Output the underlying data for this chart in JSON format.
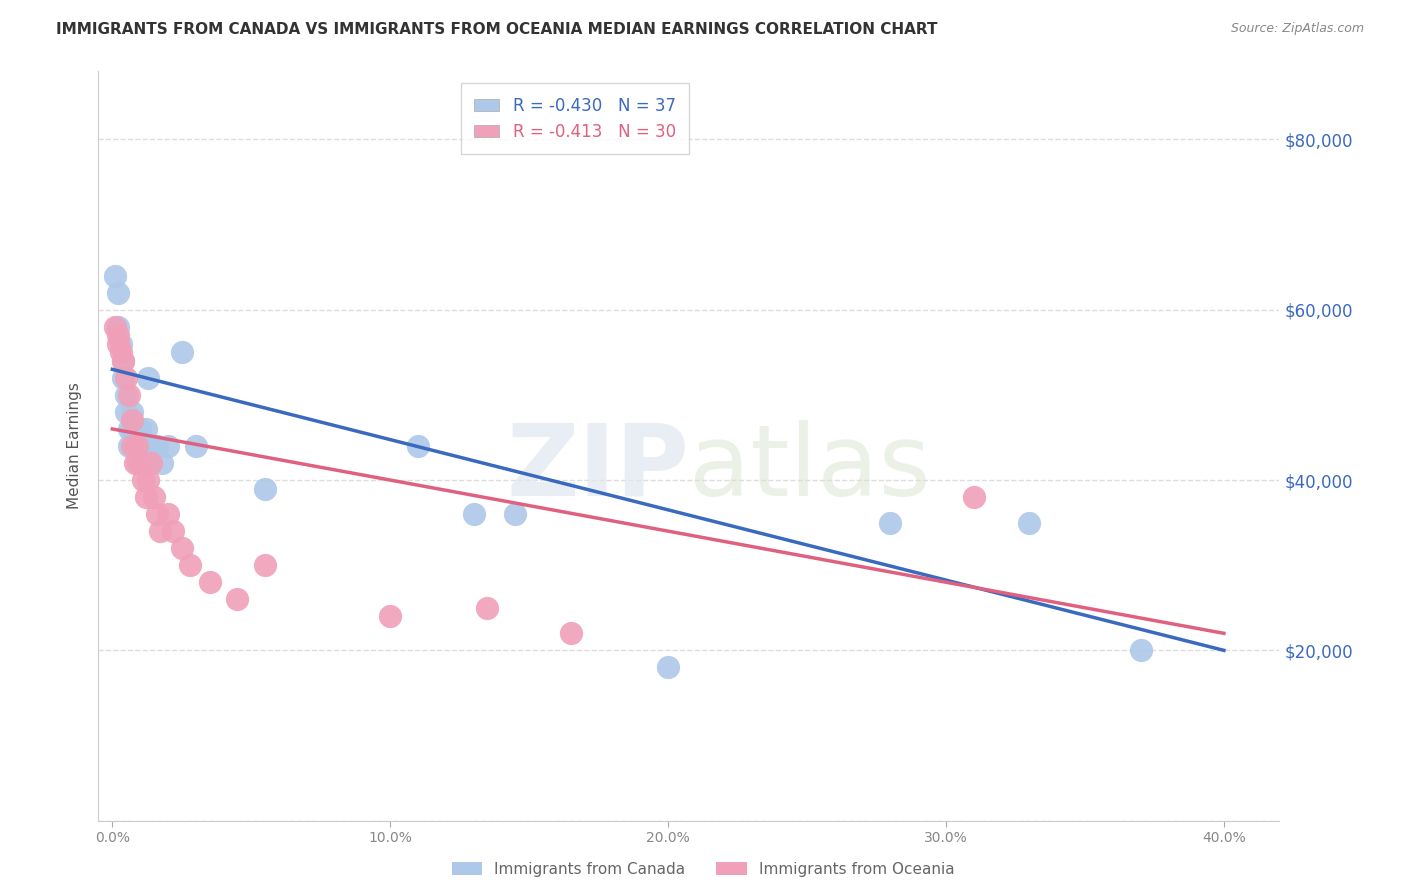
{
  "title": "IMMIGRANTS FROM CANADA VS IMMIGRANTS FROM OCEANIA MEDIAN EARNINGS CORRELATION CHART",
  "source": "Source: ZipAtlas.com",
  "ylabel": "Median Earnings",
  "watermark": "ZIPatlas",
  "canada_R": -0.43,
  "canada_N": 37,
  "oceania_R": -0.413,
  "oceania_N": 30,
  "canada_color": "#adc8e8",
  "oceania_color": "#f0a0b8",
  "canada_line_color": "#3a6abf",
  "oceania_line_color": "#e06080",
  "canada_scatter_x": [
    0.001,
    0.002,
    0.002,
    0.003,
    0.004,
    0.004,
    0.005,
    0.005,
    0.006,
    0.006,
    0.007,
    0.007,
    0.008,
    0.008,
    0.009,
    0.009,
    0.01,
    0.01,
    0.011,
    0.012,
    0.013,
    0.013,
    0.014,
    0.015,
    0.016,
    0.018,
    0.02,
    0.025,
    0.03,
    0.055,
    0.11,
    0.13,
    0.145,
    0.28,
    0.33,
    0.37,
    0.2
  ],
  "canada_scatter_y": [
    64000,
    62000,
    58000,
    56000,
    54000,
    52000,
    50000,
    48000,
    46000,
    44000,
    48000,
    46000,
    46000,
    44000,
    44000,
    42000,
    44000,
    46000,
    44000,
    46000,
    44000,
    52000,
    42000,
    44000,
    44000,
    42000,
    44000,
    55000,
    44000,
    39000,
    44000,
    36000,
    36000,
    35000,
    35000,
    20000,
    18000
  ],
  "oceania_scatter_x": [
    0.001,
    0.002,
    0.002,
    0.003,
    0.004,
    0.005,
    0.006,
    0.007,
    0.007,
    0.008,
    0.009,
    0.01,
    0.011,
    0.012,
    0.013,
    0.014,
    0.015,
    0.016,
    0.017,
    0.02,
    0.022,
    0.025,
    0.028,
    0.035,
    0.045,
    0.055,
    0.1,
    0.135,
    0.165,
    0.31
  ],
  "oceania_scatter_y": [
    58000,
    57000,
    56000,
    55000,
    54000,
    52000,
    50000,
    47000,
    44000,
    42000,
    44000,
    42000,
    40000,
    38000,
    40000,
    42000,
    38000,
    36000,
    34000,
    36000,
    34000,
    32000,
    30000,
    28000,
    26000,
    30000,
    24000,
    25000,
    22000,
    38000
  ],
  "ylim": [
    0,
    88000
  ],
  "xlim": [
    -0.005,
    0.42
  ],
  "yticks": [
    0,
    20000,
    40000,
    60000,
    80000
  ],
  "xticks": [
    0.0,
    0.1,
    0.2,
    0.3,
    0.4
  ],
  "xtick_labels": [
    "0.0%",
    "10.0%",
    "20.0%",
    "30.0%",
    "40.0%"
  ],
  "grid_color": "#dddddd",
  "background_color": "#ffffff",
  "title_fontsize": 11,
  "source_fontsize": 9,
  "legend_label_canada": "Immigrants from Canada",
  "legend_label_oceania": "Immigrants from Oceania",
  "canada_trendline_x": [
    0.0,
    0.4
  ],
  "canada_trendline_y": [
    53000,
    20000
  ],
  "oceania_trendline_x": [
    0.0,
    0.4
  ],
  "oceania_trendline_y": [
    46000,
    22000
  ]
}
